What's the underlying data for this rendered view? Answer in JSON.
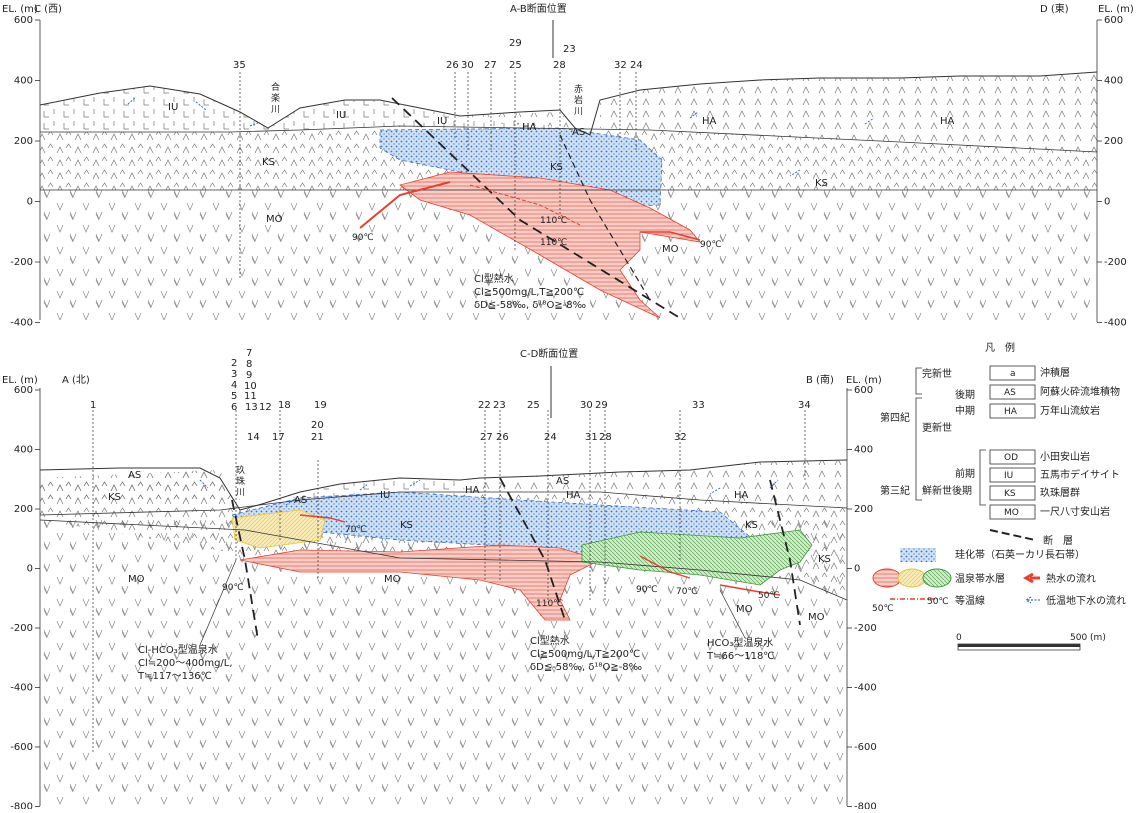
{
  "top_section": {
    "title": "A-B断面位置",
    "left_end": "C (西)",
    "right_end": "D (東)",
    "elev_label_left": "EL. (m)",
    "elev_label_right": "EL. (m)",
    "ticks": [
      "600",
      "400",
      "200",
      "0",
      "-200",
      "-400"
    ],
    "boreholes": [
      "35",
      "26",
      "30",
      "27",
      "25",
      "28",
      "32",
      "24",
      "29",
      "23"
    ],
    "rivers": [
      {
        "chars": [
          "合",
          "楽",
          "川"
        ]
      },
      {
        "chars": [
          "赤",
          "岩",
          "川"
        ]
      }
    ],
    "units": [
      "IU",
      "IU",
      "IU",
      "HA",
      "HA",
      "HA",
      "AS",
      "KS",
      "KS",
      "KS",
      "MO",
      "MO"
    ],
    "isotherms": [
      "90℃",
      "110℃",
      "110℃",
      "90℃"
    ],
    "note": [
      "Cl型熱水",
      "Cl≧500mg/L,T≧200℃",
      "δD≦-58‰, δ¹⁸O≧-8‰"
    ]
  },
  "bottom_section": {
    "title": "C-D断面位置",
    "left_end": "A (北)",
    "right_end": "B (南)",
    "elev_label_left": "EL. (m)",
    "elev_label_right": "EL. (m)",
    "ticks": [
      "600",
      "400",
      "200",
      "0",
      "-200",
      "-400",
      "-600",
      "-800"
    ],
    "boreholes": [
      "1",
      "18",
      "19",
      "20",
      "21",
      "17",
      "14",
      "22",
      "23",
      "27",
      "26",
      "25",
      "24",
      "30",
      "29",
      "31",
      "28",
      "33",
      "32",
      "34",
      "2",
      "3",
      "4",
      "5",
      "6",
      "7",
      "8",
      "9",
      "10",
      "11",
      "13",
      "12"
    ],
    "river": {
      "chars": [
        "玖",
        "珠",
        "川"
      ]
    },
    "units": [
      "AS",
      "KS",
      "MO",
      "AS",
      "IU",
      "KS",
      "HA",
      "AS",
      "HA",
      "HA",
      "KS",
      "KS",
      "MO",
      "MO",
      "MO"
    ],
    "isotherms": [
      "70℃",
      "90℃",
      "110℃",
      "90℃",
      "70℃",
      "50℃"
    ],
    "note_left": [
      "Cl-HCO₃型温泉水",
      "Cl≒200～400mg/L,",
      "T≒117～136℃"
    ],
    "note_mid": [
      "Cl型熱水",
      "Cl≧500mg/L,T≧200℃",
      "δD≦-58‰, δ¹⁸O≧-8‰"
    ],
    "note_right": [
      "HCO₃型温泉水",
      "T≒66～118℃"
    ]
  },
  "legend": {
    "title": "凡　例",
    "holocene": "完新世",
    "late": "後期",
    "middle": "中期",
    "pleistocene": "更新世",
    "early": "前期",
    "quaternary": "第四紀",
    "tertiary": "第三紀",
    "pliocene": "鮮新世後期",
    "items": [
      {
        "code": "a",
        "label": "沖積層"
      },
      {
        "code": "AS",
        "label": "阿蘇火砕流堆積物"
      },
      {
        "code": "HA",
        "label": "万年山流紋岩"
      },
      {
        "code": "OD",
        "label": "小田安山岩"
      },
      {
        "code": "IU",
        "label": "五馬市デイサイト"
      },
      {
        "code": "KS",
        "label": "玖珠層群"
      },
      {
        "code": "MO",
        "label": "一尺八寸安山岩"
      }
    ],
    "fault": "断　層",
    "silic": "珪化帯（石英ーカリ長石帯）",
    "aquifer": "温泉帯水層",
    "hotflow": "熱水の流れ",
    "isotherm_sample": "50℃",
    "isotherm_sample2": "50℃",
    "isotherm": "等温線",
    "coldflow": "低温地下水の流れ",
    "scale_start": "0",
    "scale_end": "500 (m)",
    "colors": {
      "red": "#e8402f",
      "yellow": "#e8c83a",
      "green": "#3f9a3f",
      "blue": "#3a6fc8",
      "fault": "#222222"
    }
  }
}
